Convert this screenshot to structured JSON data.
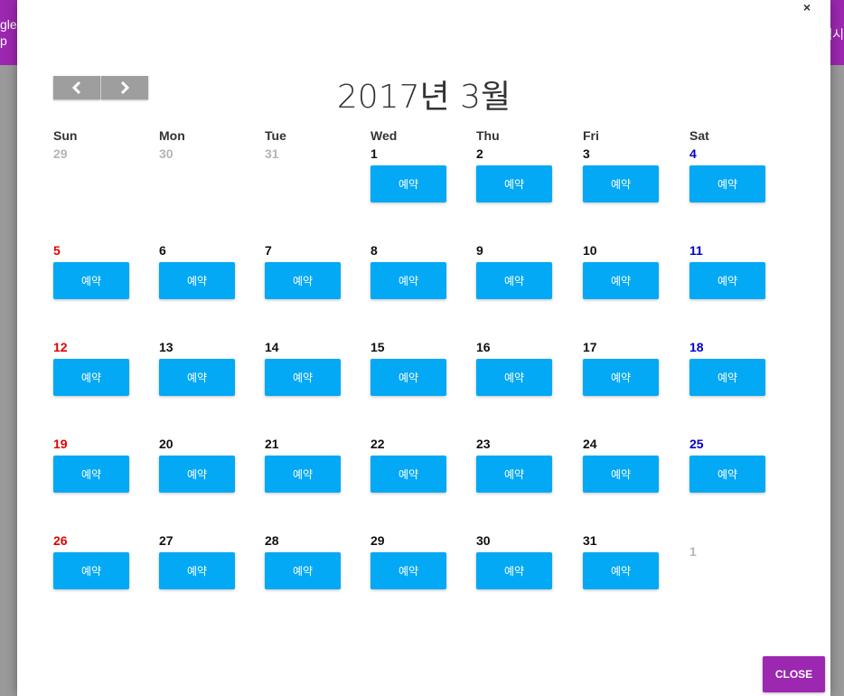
{
  "background": {
    "left_text": "gle\np",
    "right_text": "객시"
  },
  "modal": {
    "close_x": "×",
    "title": "2017년 3월",
    "prev_icon": "chevron-left-icon",
    "next_icon": "chevron-right-icon",
    "close_label": "CLOSE",
    "book_label": "예약"
  },
  "weekdays": [
    "Sun",
    "Mon",
    "Tue",
    "Wed",
    "Thu",
    "Fri",
    "Sat"
  ],
  "weeks": [
    [
      {
        "day": "29",
        "type": "other",
        "book": false
      },
      {
        "day": "30",
        "type": "other",
        "book": false
      },
      {
        "day": "31",
        "type": "other",
        "book": false
      },
      {
        "day": "1",
        "type": "normal",
        "book": true
      },
      {
        "day": "2",
        "type": "normal",
        "book": true
      },
      {
        "day": "3",
        "type": "normal",
        "book": true
      },
      {
        "day": "4",
        "type": "sat",
        "book": true
      }
    ],
    [
      {
        "day": "5",
        "type": "sun",
        "book": true
      },
      {
        "day": "6",
        "type": "normal",
        "book": true
      },
      {
        "day": "7",
        "type": "normal",
        "book": true
      },
      {
        "day": "8",
        "type": "normal",
        "book": true
      },
      {
        "day": "9",
        "type": "normal",
        "book": true
      },
      {
        "day": "10",
        "type": "normal",
        "book": true
      },
      {
        "day": "11",
        "type": "sat",
        "book": true
      }
    ],
    [
      {
        "day": "12",
        "type": "sun",
        "book": true
      },
      {
        "day": "13",
        "type": "normal",
        "book": true
      },
      {
        "day": "14",
        "type": "normal",
        "book": true
      },
      {
        "day": "15",
        "type": "normal",
        "book": true
      },
      {
        "day": "16",
        "type": "normal",
        "book": true
      },
      {
        "day": "17",
        "type": "normal",
        "book": true
      },
      {
        "day": "18",
        "type": "sat",
        "book": true
      }
    ],
    [
      {
        "day": "19",
        "type": "sun",
        "book": true
      },
      {
        "day": "20",
        "type": "normal",
        "book": true
      },
      {
        "day": "21",
        "type": "normal",
        "book": true
      },
      {
        "day": "22",
        "type": "normal",
        "book": true
      },
      {
        "day": "23",
        "type": "normal",
        "book": true
      },
      {
        "day": "24",
        "type": "normal",
        "book": true
      },
      {
        "day": "25",
        "type": "sat",
        "book": true
      }
    ],
    [
      {
        "day": "26",
        "type": "sun",
        "book": true
      },
      {
        "day": "27",
        "type": "normal",
        "book": true
      },
      {
        "day": "28",
        "type": "normal",
        "book": true
      },
      {
        "day": "29",
        "type": "normal",
        "book": true
      },
      {
        "day": "30",
        "type": "normal",
        "book": true
      },
      {
        "day": "31",
        "type": "normal",
        "book": true
      },
      {
        "day": "1",
        "type": "other",
        "book": false
      }
    ]
  ],
  "colors": {
    "accent_purple": "#9c27b0",
    "book_button": "#03a9f4",
    "sunday": "#e00000",
    "saturday": "#0000cc",
    "other_month": "#b5b5b5"
  }
}
